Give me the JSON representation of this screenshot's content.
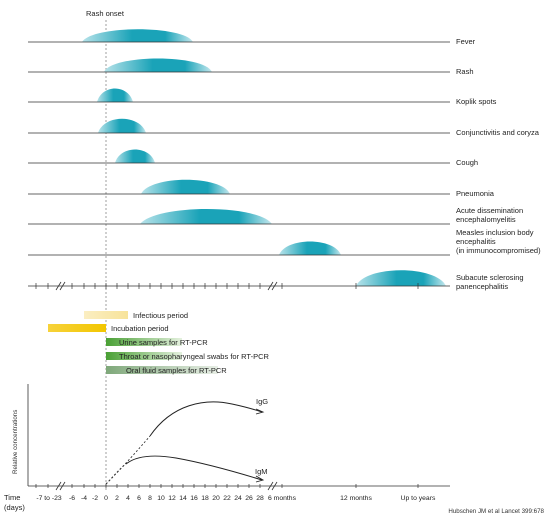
{
  "rash_onset_label": "Rash onset",
  "symptoms": [
    {
      "label": "Fever"
    },
    {
      "label": "Rash"
    },
    {
      "label": "Koplik spots"
    },
    {
      "label": "Conjunctivitis and coryza"
    },
    {
      "label": "Cough"
    },
    {
      "label": "Pneumonia"
    },
    {
      "label_lines": [
        "Acute dissemination",
        "encephalomyelitis"
      ]
    },
    {
      "label_lines": [
        "Measles inclusion body",
        "encephalitis",
        "(in immunocompromised)"
      ]
    },
    {
      "label_lines": [
        "Subacute sclerosing",
        "panencephalitis"
      ]
    }
  ],
  "periods": [
    {
      "label": "Infectious period",
      "color": "#f7e39a"
    },
    {
      "label": "Incubation period",
      "color": "#f2c600"
    },
    {
      "label": "Urine samples for RT-PCR",
      "color": "#5aa83c"
    },
    {
      "label": "Throat or nasopharyngeal swabs for RT-PCR",
      "color": "#5aa83c"
    },
    {
      "label": "Oral fluid samples for RT-PCR",
      "color": "#7fa87a"
    }
  ],
  "antibodies": {
    "y_label": "Relative concentrations",
    "igg_label": "IgG",
    "igm_label": "IgM"
  },
  "axis": {
    "title_line1": "Time",
    "title_line2": "(days)",
    "ticks": [
      "-7 to -23",
      "-6",
      "-4",
      "-2",
      "0",
      "2",
      "4",
      "6",
      "8",
      "10",
      "12",
      "14",
      "16",
      "18",
      "20",
      "22",
      "24",
      "26",
      "28",
      "6 months",
      "12 months",
      "Up to years"
    ]
  },
  "citation": "Hubschen JM et al Lancet 399:678",
  "colors": {
    "blob": "#1aa3b8",
    "blob_light": "#9fd9e3",
    "line": "#333333",
    "dashed": "#888888"
  }
}
